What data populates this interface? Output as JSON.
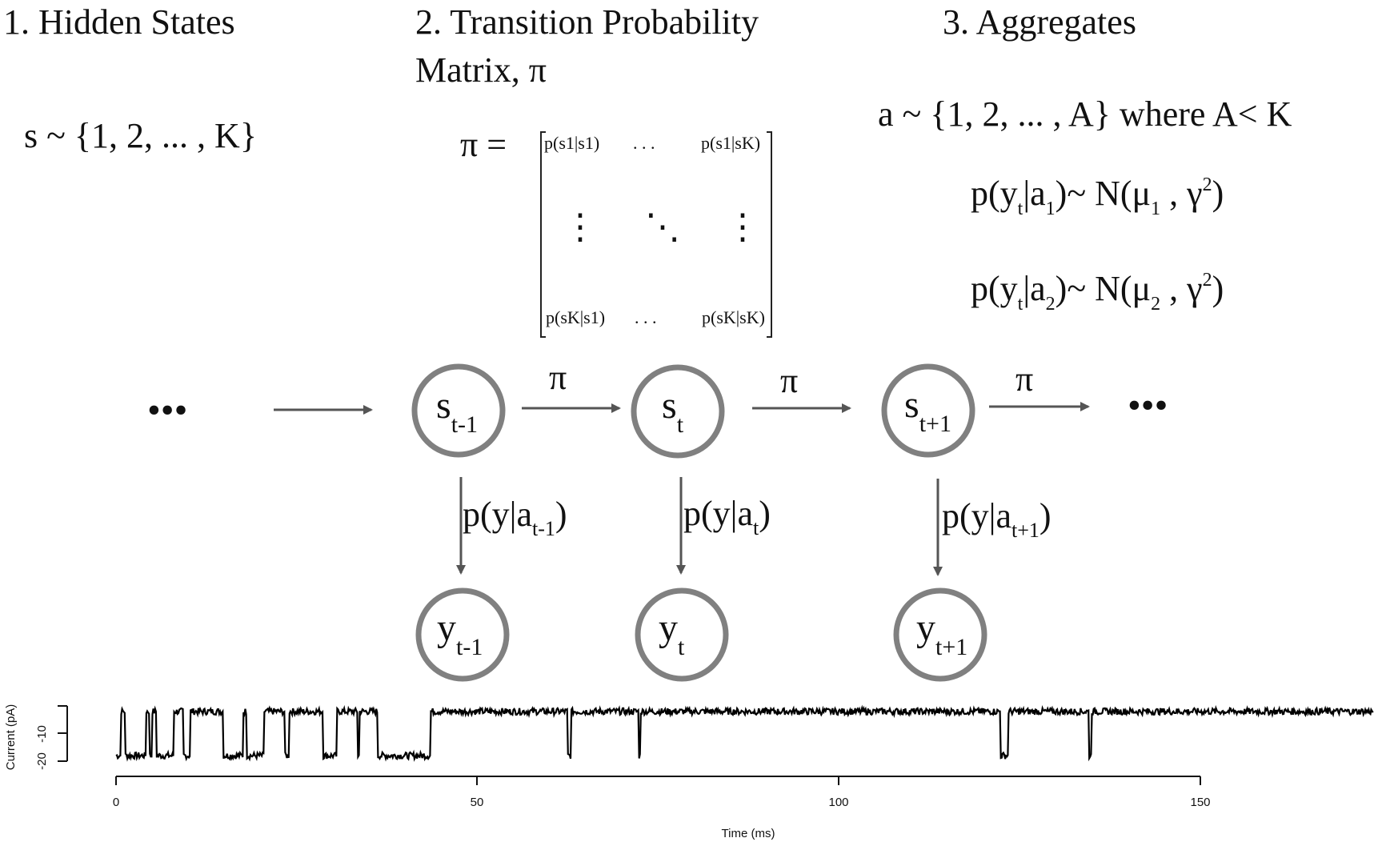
{
  "headings": {
    "hidden_states": "1. Hidden States",
    "transition_line1": "2. Transition Probability",
    "transition_line2": "Matrix, π",
    "aggregates": "3. Aggregates"
  },
  "formulas": {
    "state_space": "s ~ {1, 2, ... , K}",
    "aggregate_space": "a ~ {1, 2, ... , A} where A< K",
    "emission_1": {
      "lhs": "p(y",
      "sub_t": "t",
      "mid": "|a",
      "sub_a": "1",
      "rhs": ")~ N(μ",
      "sub_mu": "1",
      "tail": " , γ",
      "sup": "2",
      "close": ")"
    },
    "emission_2": {
      "lhs": "p(y",
      "sub_t": "t",
      "mid": "|a",
      "sub_a": "2",
      "rhs": ")~ N(μ",
      "sub_mu": "2",
      "tail": " , γ",
      "sup": "2",
      "close": ")"
    }
  },
  "matrix": {
    "lhs": "π =",
    "top_left": "p(s1|s1)",
    "top_right": "p(s1|sK)",
    "bottom_left": "p(sK|s1)",
    "bottom_right": "p(sK|sK)",
    "h_dots": ". . .",
    "v_dots": "⋮",
    "d_dots": "⋱"
  },
  "chain": {
    "ellipsis": "•••",
    "transition_label": "π",
    "states": [
      {
        "main": "s",
        "sub": "t-1"
      },
      {
        "main": "s",
        "sub": "t"
      },
      {
        "main": "s",
        "sub": "t+1"
      }
    ],
    "observations": [
      {
        "main": "y",
        "sub": "t-1"
      },
      {
        "main": "y",
        "sub": "t"
      },
      {
        "main": "y",
        "sub": "t+1"
      }
    ],
    "emissions": [
      {
        "prefix": "p(y|a",
        "sub": "t-1",
        "suffix": ")"
      },
      {
        "prefix": "p(y|a",
        "sub": "t",
        "suffix": ")"
      },
      {
        "prefix": "p(y|a",
        "sub": "t+1",
        "suffix": ")"
      }
    ]
  },
  "chart_data": {
    "type": "line",
    "xlabel": "Time (ms)",
    "ylabel": "Current (pA)",
    "xlim": [
      0,
      174
    ],
    "ylim": [
      -24,
      -4
    ],
    "x_ticks": [
      "0",
      "50",
      "100",
      "150"
    ],
    "y_ticks": [
      "-10",
      "-20"
    ],
    "levels": {
      "open": -6,
      "closed": -22
    },
    "closed_intervals_ms": [
      [
        0,
        0.6
      ],
      [
        1.3,
        4.2
      ],
      [
        4.6,
        5.0
      ],
      [
        5.6,
        8.0
      ],
      [
        9.3,
        10.2
      ],
      [
        14.8,
        17.6
      ],
      [
        18.1,
        20.4
      ],
      [
        23.3,
        23.9
      ],
      [
        28.6,
        30.6
      ],
      [
        33.4,
        33.7
      ],
      [
        36.2,
        43.5
      ],
      [
        62.4,
        62.9
      ],
      [
        72.3,
        72.5
      ],
      [
        122.4,
        123.4
      ],
      [
        134.6,
        135.0
      ]
    ],
    "line_color": "#000000"
  }
}
